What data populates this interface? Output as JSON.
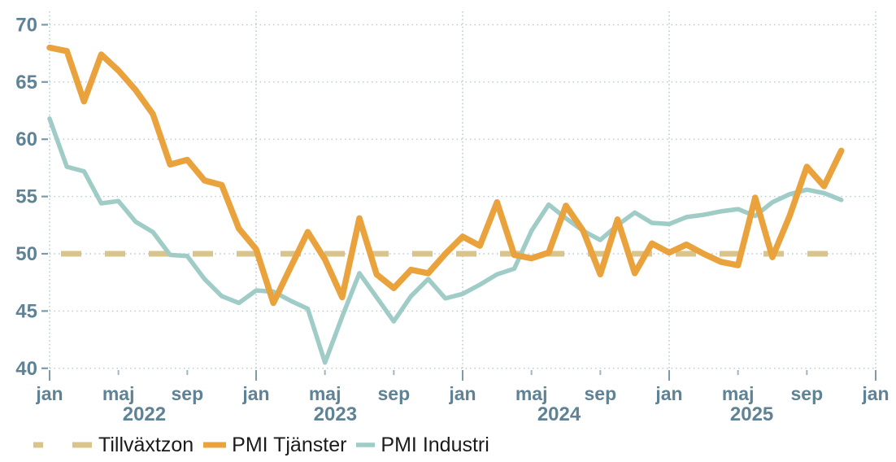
{
  "chart_data": {
    "type": "line",
    "title": "",
    "x_unit": "month",
    "categories": [
      "2022-01",
      "2022-02",
      "2022-03",
      "2022-04",
      "2022-05",
      "2022-06",
      "2022-07",
      "2022-08",
      "2022-09",
      "2022-10",
      "2022-11",
      "2022-12",
      "2023-01",
      "2023-02",
      "2023-03",
      "2023-04",
      "2023-05",
      "2023-06",
      "2023-07",
      "2023-08",
      "2023-09",
      "2023-10",
      "2023-11",
      "2023-12",
      "2024-01",
      "2024-02",
      "2024-03",
      "2024-04",
      "2024-05",
      "2024-06",
      "2024-07",
      "2024-08",
      "2024-09",
      "2024-10",
      "2024-11",
      "2024-12",
      "2025-01",
      "2025-02",
      "2025-03",
      "2025-04",
      "2025-05",
      "2025-06",
      "2025-07",
      "2025-08",
      "2025-09",
      "2025-10",
      "2025-11"
    ],
    "series": [
      {
        "name": "PMI Tjänster",
        "color": "#EAA23C",
        "line_width": 7.5,
        "values": [
          68.0,
          67.7,
          63.3,
          67.4,
          66.0,
          64.3,
          62.2,
          57.8,
          58.2,
          56.4,
          56.0,
          52.2,
          50.4,
          45.7,
          48.8,
          51.9,
          49.5,
          46.2,
          53.1,
          48.2,
          47.0,
          48.6,
          48.3,
          50.0,
          51.5,
          50.7,
          54.5,
          49.9,
          49.6,
          50.1,
          54.2,
          52.0,
          48.2,
          53.0,
          48.3,
          50.9,
          50.1,
          50.8,
          50.0,
          49.3,
          49.0,
          54.9,
          49.7,
          53.3,
          57.6,
          55.9,
          59.0
        ]
      },
      {
        "name": "PMI Industri",
        "color": "#9FCCC6",
        "line_width": 5.5,
        "values": [
          61.8,
          57.6,
          57.2,
          54.4,
          54.6,
          52.8,
          51.9,
          49.9,
          49.8,
          47.8,
          46.3,
          45.7,
          46.8,
          46.7,
          45.9,
          45.2,
          40.5,
          44.5,
          48.3,
          46.2,
          44.1,
          46.3,
          47.8,
          46.1,
          46.5,
          47.3,
          48.2,
          48.7,
          52.0,
          54.3,
          53.1,
          52.0,
          51.2,
          52.5,
          53.6,
          52.7,
          52.6,
          53.2,
          53.4,
          53.7,
          53.9,
          53.3,
          54.5,
          55.2,
          55.6,
          55.3,
          54.7
        ]
      }
    ],
    "reference_line": {
      "name": "Tillväxtzon",
      "value": 50,
      "color": "#D9C58C",
      "style": "dashed",
      "line_width": 7
    },
    "y_axis": {
      "ticks": [
        40,
        45,
        50,
        55,
        60,
        65,
        70
      ],
      "min": 39.0,
      "max": 71.2
    },
    "x_axis": {
      "tick_months": [
        0,
        4,
        8,
        12,
        16,
        20,
        24,
        28,
        32,
        36,
        40,
        44,
        48
      ],
      "tick_labels": [
        "jan",
        "maj",
        "sep",
        "jan",
        "maj",
        "sep",
        "jan",
        "maj",
        "sep",
        "jan",
        "maj",
        "sep",
        "jan"
      ],
      "year_labels": [
        {
          "text": "2022",
          "month": 5.5
        },
        {
          "text": "2023",
          "month": 16.6
        },
        {
          "text": "2024",
          "month": 29.6
        },
        {
          "text": "2025",
          "month": 40.8
        }
      ]
    },
    "legend": [
      "Tillväxtzon",
      "PMI Tjänster",
      "PMI Industri"
    ],
    "legend_position": "bottom-left",
    "grid": "dotted",
    "ylim": [
      39.0,
      71.2
    ]
  },
  "colors": {
    "axis_text": "#5F8294",
    "grid_line": "#B5C9D3",
    "grid_line_vertical": "#AEC4CF",
    "tick_major": "#7E99A9",
    "tick_minor": "#9FB6C2",
    "legend_text": "#1B1B1B",
    "background": "#FFFFFF"
  }
}
